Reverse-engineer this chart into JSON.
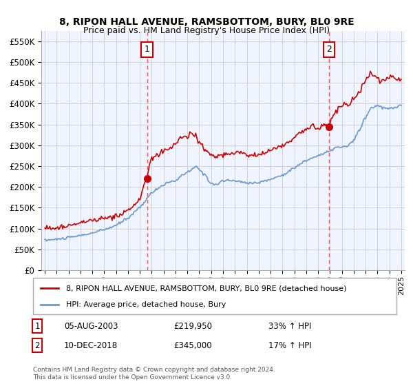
{
  "title": "8, RIPON HALL AVENUE, RAMSBOTTOM, BURY, BL0 9RE",
  "subtitle": "Price paid vs. HM Land Registry's House Price Index (HPI)",
  "legend_line1": "8, RIPON HALL AVENUE, RAMSBOTTOM, BURY, BL0 9RE (detached house)",
  "legend_line2": "HPI: Average price, detached house, Bury",
  "annotation1_date": "05-AUG-2003",
  "annotation1_price": "£219,950",
  "annotation1_hpi": "33% ↑ HPI",
  "annotation2_date": "10-DEC-2018",
  "annotation2_price": "£345,000",
  "annotation2_hpi": "17% ↑ HPI",
  "footer": "Contains HM Land Registry data © Crown copyright and database right 2024.\nThis data is licensed under the Open Government Licence v3.0.",
  "sale1_x": 2003.6,
  "sale1_y": 219950,
  "sale2_x": 2018.92,
  "sale2_y": 345000,
  "ylim": [
    0,
    575000
  ],
  "yticks": [
    0,
    50000,
    100000,
    150000,
    200000,
    250000,
    300000,
    350000,
    400000,
    450000,
    500000,
    550000
  ],
  "xlim_left": 1994.7,
  "xlim_right": 2025.3,
  "red_color": "#cc0000",
  "blue_color": "#6699cc",
  "grid_color": "#cccccc",
  "background_color": "#f0f4ff"
}
